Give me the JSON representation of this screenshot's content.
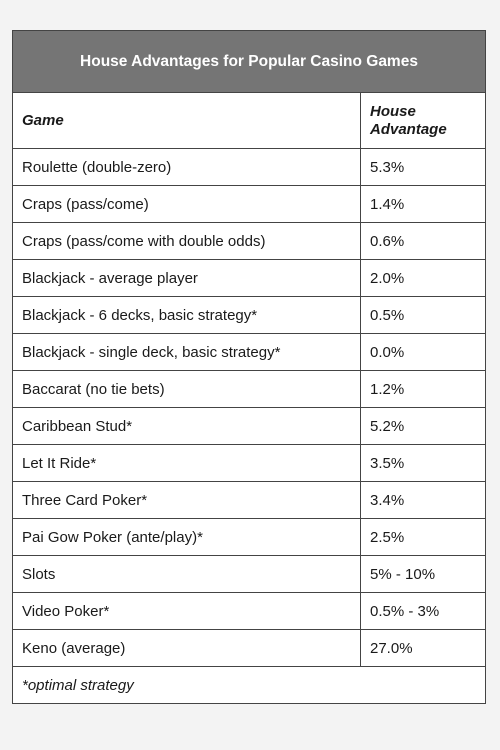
{
  "table": {
    "title": "House Advantages for Popular Casino Games",
    "headers": {
      "game": "Game",
      "house_advantage": "House Advantage"
    },
    "rows": [
      {
        "game": "Roulette (double-zero)",
        "advantage": "5.3%"
      },
      {
        "game": "Craps (pass/come)",
        "advantage": "1.4%"
      },
      {
        "game": "Craps (pass/come with double odds)",
        "advantage": "0.6%"
      },
      {
        "game": "Blackjack - average player",
        "advantage": "2.0%"
      },
      {
        "game": "Blackjack - 6 decks, basic strategy*",
        "advantage": "0.5%"
      },
      {
        "game": "Blackjack - single deck, basic strategy*",
        "advantage": "0.0%"
      },
      {
        "game": "Baccarat (no tie bets)",
        "advantage": "1.2%"
      },
      {
        "game": "Caribbean Stud*",
        "advantage": "5.2%"
      },
      {
        "game": "Let It Ride*",
        "advantage": "3.5%"
      },
      {
        "game": "Three Card Poker*",
        "advantage": "3.4%"
      },
      {
        "game": "Pai Gow Poker (ante/play)*",
        "advantage": "2.5%"
      },
      {
        "game": "Slots",
        "advantage": "5% - 10%"
      },
      {
        "game": "Video Poker*",
        "advantage": "0.5% - 3%"
      },
      {
        "game": "Keno (average)",
        "advantage": "27.0%"
      }
    ],
    "footnote": "*optimal strategy"
  },
  "colors": {
    "title_background": "#757575",
    "title_text": "#ffffff",
    "border": "#444444"
  }
}
